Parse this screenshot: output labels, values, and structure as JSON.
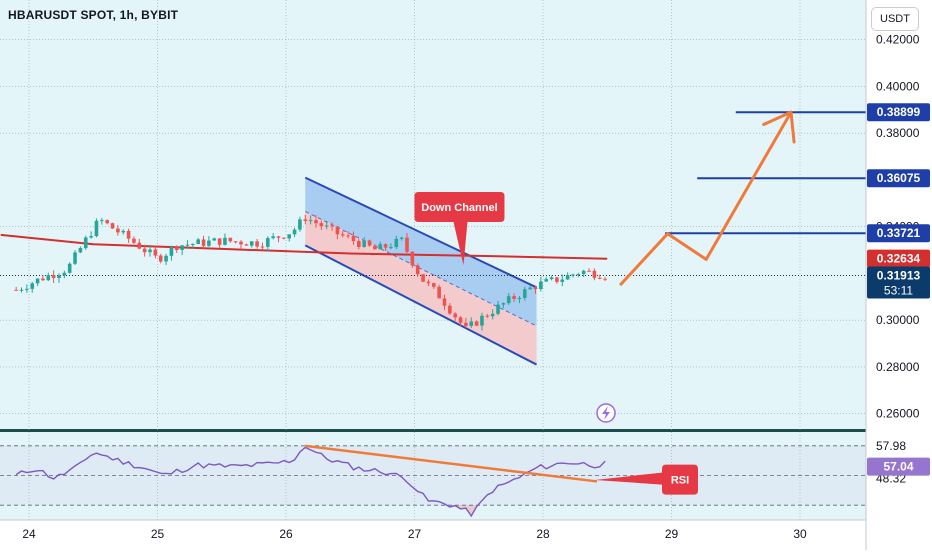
{
  "header": {
    "title": "HBARUSDT SPOT, 1h, BYBIT",
    "currency_button": "USDT"
  },
  "colors": {
    "background": "#e4f5f9",
    "grid": "#9aa6ad",
    "bull": "#26a69a",
    "bear": "#ef5350",
    "ma": "#d32f2f",
    "rsi_line": "#7e57c2",
    "orange": "#f07a3a",
    "level_line": "#1e3fa8",
    "channel_border": "#2a4ab8",
    "channel_top_fill": "#9ec5ef",
    "channel_bottom_fill": "#f4c7c7",
    "callout": "#e63946"
  },
  "chart_data": [
    {
      "type": "candlestick",
      "name": "price",
      "x_ticks": [
        "24",
        "25",
        "26",
        "27",
        "28",
        "29",
        "30"
      ],
      "y_ticks": [
        "0.42000",
        "0.40000",
        "0.38000",
        "0.34000",
        "0.30000",
        "0.28000",
        "0.26000"
      ],
      "ylim": [
        0.253,
        0.437
      ],
      "grid": true,
      "candles_xrange": [
        23.9,
        28.52
      ],
      "anchors": [
        [
          23.9,
          0.313
        ],
        [
          24.1,
          0.318
        ],
        [
          24.3,
          0.322
        ],
        [
          24.45,
          0.335
        ],
        [
          24.55,
          0.343
        ],
        [
          24.8,
          0.334
        ],
        [
          25.0,
          0.326
        ],
        [
          25.15,
          0.332
        ],
        [
          25.5,
          0.334
        ],
        [
          25.8,
          0.333
        ],
        [
          26.05,
          0.338
        ],
        [
          26.15,
          0.344
        ],
        [
          26.4,
          0.337
        ],
        [
          26.7,
          0.33
        ],
        [
          26.9,
          0.334
        ],
        [
          27.05,
          0.318
        ],
        [
          27.2,
          0.31
        ],
        [
          27.4,
          0.296
        ],
        [
          27.55,
          0.302
        ],
        [
          27.75,
          0.309
        ],
        [
          27.95,
          0.315
        ],
        [
          28.15,
          0.318
        ],
        [
          28.3,
          0.321
        ],
        [
          28.52,
          0.319
        ]
      ],
      "moving_average": {
        "x_range": [
          23.78,
          28.5
        ],
        "points": [
          [
            23.78,
            0.3365
          ],
          [
            24.5,
            0.3325
          ],
          [
            25.5,
            0.3305
          ],
          [
            26.5,
            0.3285
          ],
          [
            27.5,
            0.3275
          ],
          [
            28.5,
            0.3263
          ]
        ]
      },
      "price_labels": [
        {
          "value": 0.38899,
          "text": "0.38899",
          "kind": "level"
        },
        {
          "value": 0.36075,
          "text": "0.36075",
          "kind": "level"
        },
        {
          "value": 0.33721,
          "text": "0.33721",
          "kind": "level"
        },
        {
          "value": 0.32634,
          "text": "0.32634",
          "kind": "ma"
        },
        {
          "value": 0.31913,
          "text": "0.31913",
          "kind": "current",
          "subtext": "53:11"
        }
      ],
      "levels": [
        {
          "value": 0.38899,
          "x_from": 29.5,
          "x_to": 30.6
        },
        {
          "value": 0.36075,
          "x_from": 29.2,
          "x_to": 30.6
        },
        {
          "value": 0.33721,
          "x_from": 28.95,
          "x_to": 30.6
        }
      ],
      "channel": {
        "label": "Down Channel",
        "upper": [
          [
            26.15,
            0.361
          ],
          [
            27.95,
            0.314
          ]
        ],
        "lower": [
          [
            26.15,
            0.332
          ],
          [
            27.95,
            0.281
          ]
        ],
        "callout_x": 27.35
      },
      "projection": [
        [
          28.6,
          0.315
        ],
        [
          28.97,
          0.337
        ],
        [
          29.27,
          0.326
        ],
        [
          29.93,
          0.389
        ]
      ]
    },
    {
      "type": "line",
      "name": "RSI",
      "y_ticks": [
        "57.98",
        "48.32"
      ],
      "value_label": "57.04",
      "levels": [
        70,
        50,
        30
      ],
      "ylim": [
        20,
        80
      ],
      "anchors": [
        [
          23.9,
          50
        ],
        [
          24.05,
          55
        ],
        [
          24.2,
          48
        ],
        [
          24.4,
          57
        ],
        [
          24.5,
          66
        ],
        [
          24.7,
          60
        ],
        [
          24.9,
          55
        ],
        [
          25.05,
          50
        ],
        [
          25.3,
          57
        ],
        [
          25.6,
          56
        ],
        [
          25.9,
          58
        ],
        [
          26.05,
          60
        ],
        [
          26.15,
          70
        ],
        [
          26.3,
          62
        ],
        [
          26.55,
          55
        ],
        [
          26.8,
          52
        ],
        [
          26.95,
          47
        ],
        [
          27.1,
          33
        ],
        [
          27.3,
          30
        ],
        [
          27.45,
          24
        ],
        [
          27.6,
          40
        ],
        [
          27.8,
          48
        ],
        [
          27.95,
          55
        ],
        [
          28.2,
          59
        ],
        [
          28.4,
          57
        ],
        [
          28.5,
          58
        ]
      ],
      "trend_line": [
        [
          26.15,
          70
        ],
        [
          28.42,
          46
        ]
      ],
      "callout": "RSI"
    }
  ]
}
